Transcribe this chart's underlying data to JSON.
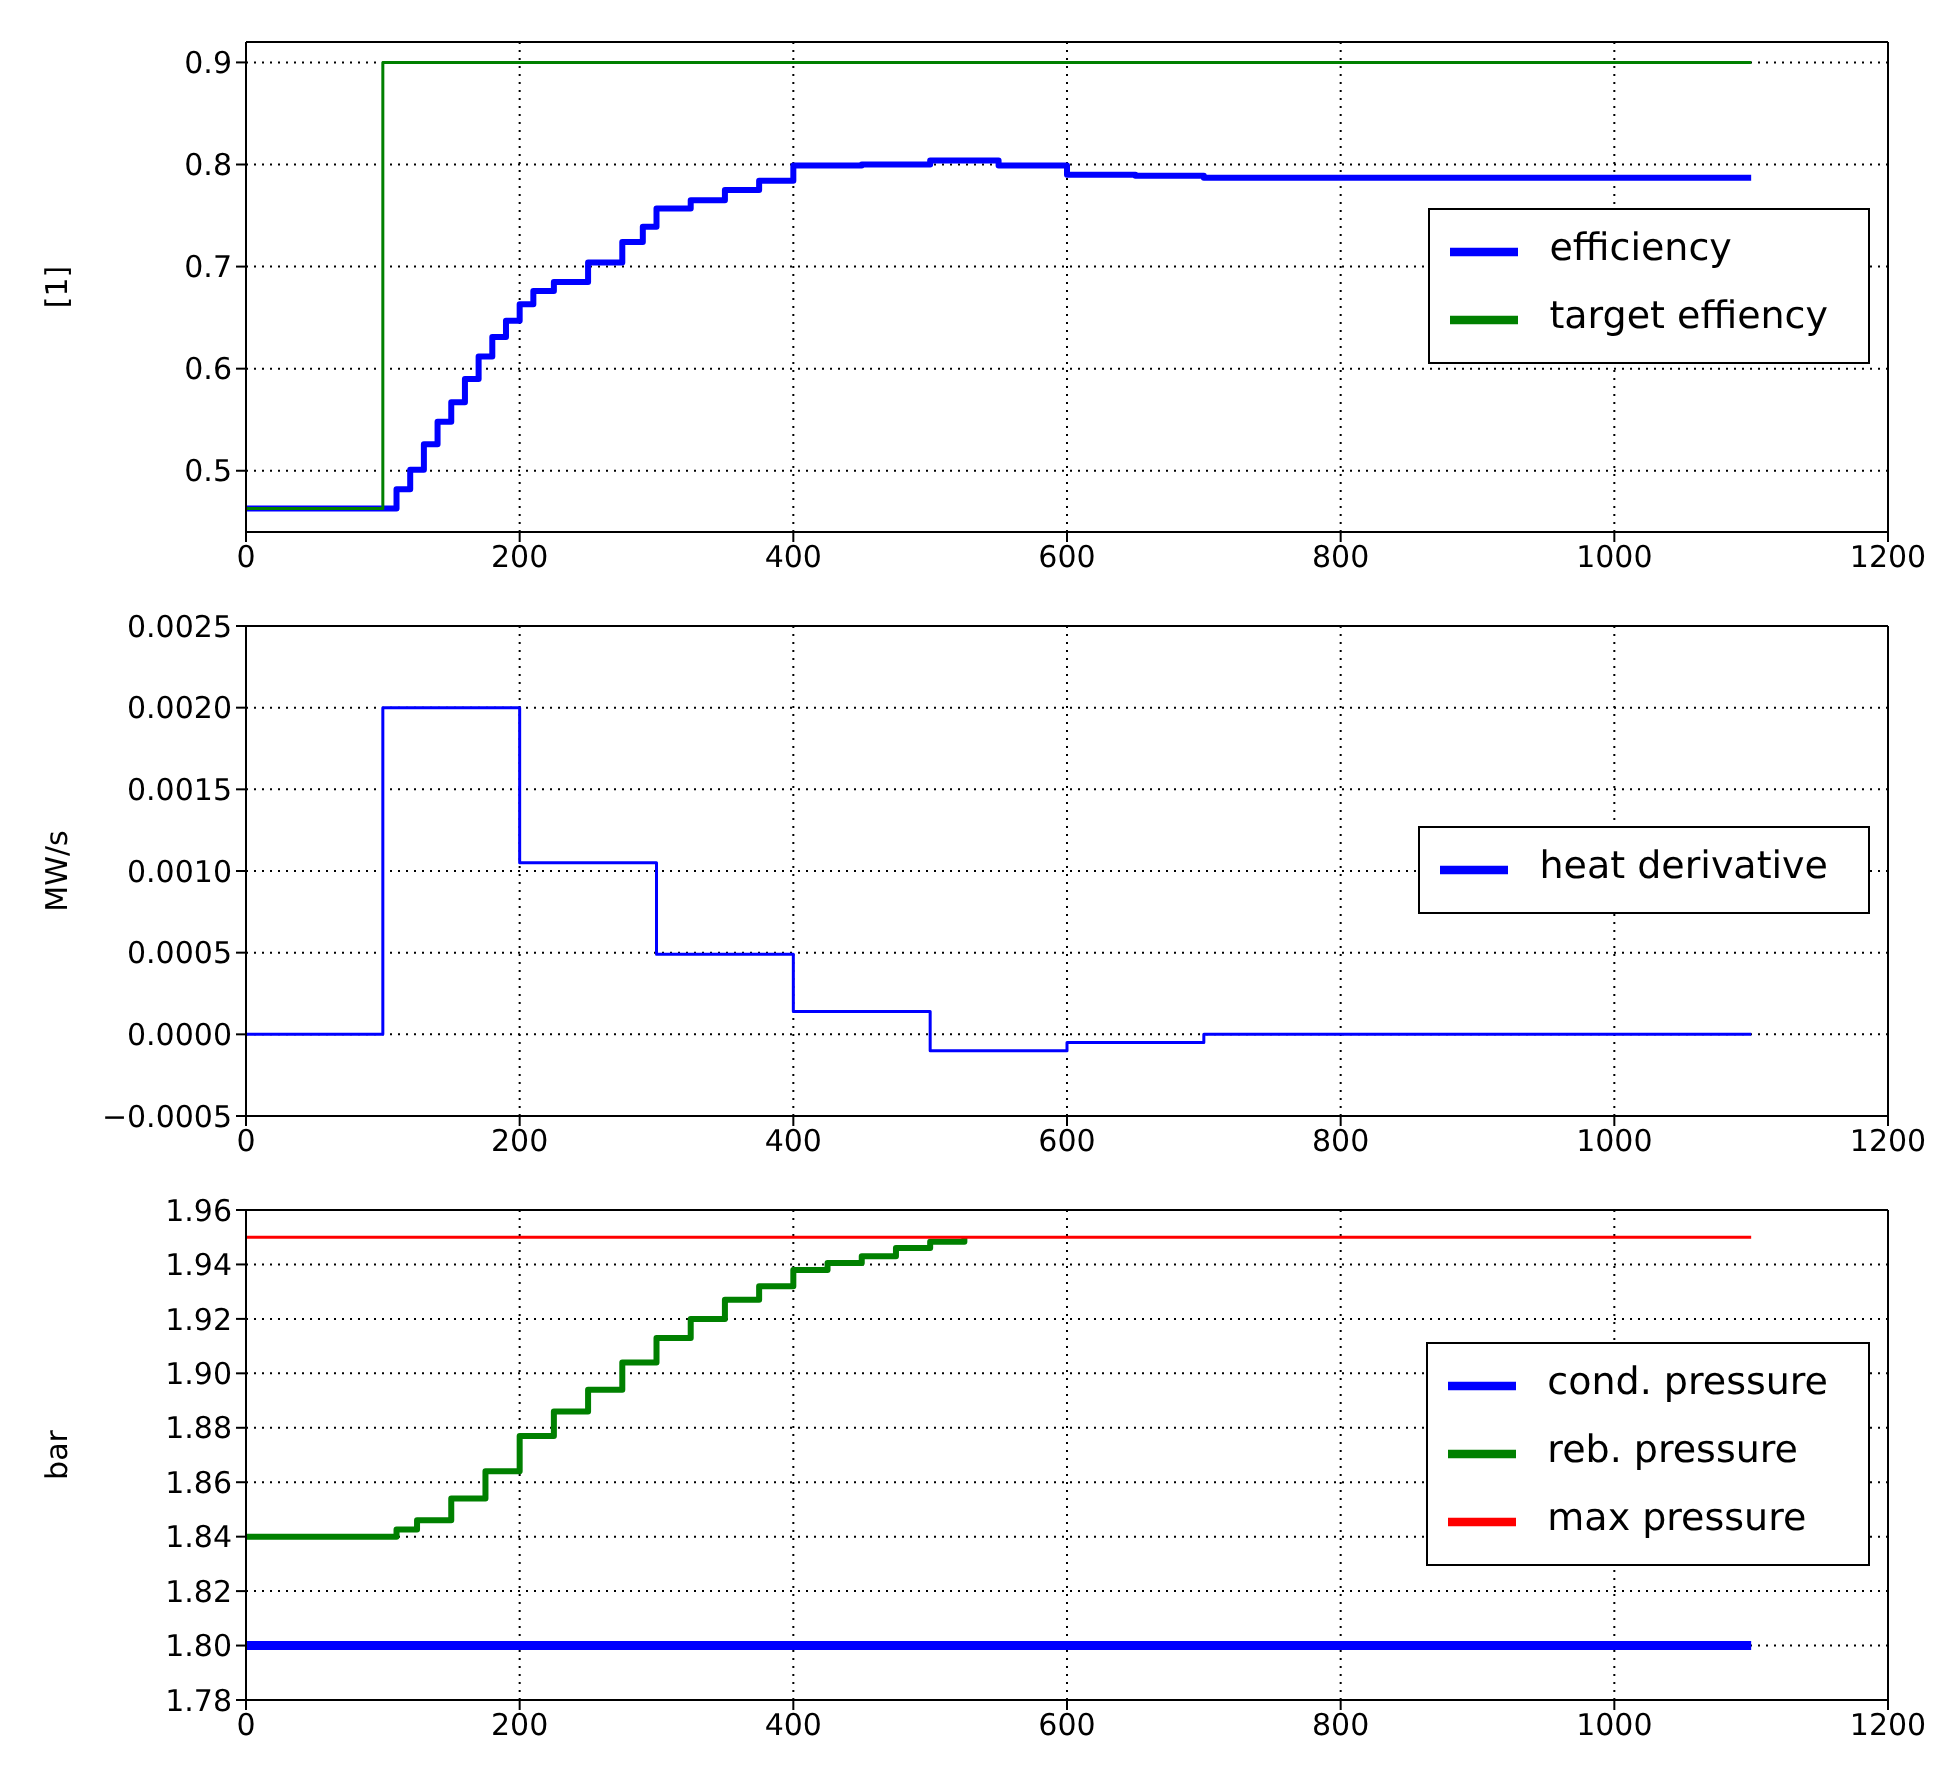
{
  "chart_data": [
    {
      "type": "step",
      "ylabel": "[1]",
      "xlim": [
        0,
        1200
      ],
      "xticks": [
        0,
        200,
        400,
        600,
        800,
        1000,
        1200
      ],
      "ylim": [
        0.44,
        0.92
      ],
      "yticks": [
        0.5,
        0.6,
        0.7,
        0.8,
        0.9
      ],
      "grid": true,
      "legend": "right",
      "series": [
        {
          "name": "efficiency",
          "color": "#0000ff",
          "x": [
            0,
            100,
            110,
            120,
            130,
            140,
            150,
            160,
            170,
            180,
            190,
            200,
            210,
            225,
            250,
            275,
            290,
            300,
            325,
            350,
            375,
            400,
            450,
            500,
            550,
            600,
            650,
            700,
            1100
          ],
          "values": [
            0.463,
            0.463,
            0.482,
            0.501,
            0.526,
            0.548,
            0.567,
            0.59,
            0.612,
            0.631,
            0.647,
            0.663,
            0.676,
            0.685,
            0.704,
            0.724,
            0.739,
            0.757,
            0.765,
            0.775,
            0.784,
            0.799,
            0.8,
            0.804,
            0.799,
            0.79,
            0.789,
            0.787,
            0.787
          ]
        },
        {
          "name": "target effiency",
          "color": "#008000",
          "x": [
            0,
            100,
            1100
          ],
          "values": [
            0.463,
            0.9,
            0.9
          ]
        }
      ]
    },
    {
      "type": "step",
      "ylabel": "MW/s",
      "xlim": [
        0,
        1200
      ],
      "xticks": [
        0,
        200,
        400,
        600,
        800,
        1000,
        1200
      ],
      "ylim": [
        -0.0005,
        0.0025
      ],
      "yticks": [
        {
          "value": -0.0005,
          "label": "−0.0005"
        },
        {
          "value": 0,
          "label": "0.0000"
        },
        {
          "value": 0.0005,
          "label": "0.0005"
        },
        {
          "value": 0.001,
          "label": "0.0010"
        },
        {
          "value": 0.0015,
          "label": "0.0015"
        },
        {
          "value": 0.002,
          "label": "0.0020"
        },
        {
          "value": 0.0025,
          "label": "0.0025"
        }
      ],
      "grid": true,
      "legend": "right",
      "series": [
        {
          "name": "heat derivative",
          "color": "#0000ff",
          "x": [
            0,
            100,
            200,
            300,
            400,
            500,
            600,
            700,
            1100
          ],
          "values": [
            0,
            0.002,
            0.00105,
            0.00049,
            0.00014,
            -0.0001,
            -5e-05,
            0,
            0
          ]
        }
      ]
    },
    {
      "type": "step",
      "ylabel": "bar",
      "xlim": [
        0,
        1200
      ],
      "xticks": [
        0,
        200,
        400,
        600,
        800,
        1000,
        1200
      ],
      "ylim": [
        1.78,
        1.96
      ],
      "yticks": [
        {
          "value": 1.78,
          "label": "1.78"
        },
        {
          "value": 1.8,
          "label": "1.80"
        },
        {
          "value": 1.82,
          "label": "1.82"
        },
        {
          "value": 1.84,
          "label": "1.84"
        },
        {
          "value": 1.86,
          "label": "1.86"
        },
        {
          "value": 1.88,
          "label": "1.88"
        },
        {
          "value": 1.9,
          "label": "1.90"
        },
        {
          "value": 1.92,
          "label": "1.92"
        },
        {
          "value": 1.94,
          "label": "1.94"
        },
        {
          "value": 1.96,
          "label": "1.96"
        }
      ],
      "grid": true,
      "legend": "right",
      "series": [
        {
          "name": "cond. pressure",
          "color": "#0000ff",
          "x": [
            0,
            1100
          ],
          "values": [
            1.8,
            1.8
          ]
        },
        {
          "name": "reb. pressure",
          "color": "#008000",
          "x": [
            0,
            100,
            110,
            125,
            150,
            175,
            200,
            225,
            250,
            275,
            300,
            325,
            350,
            375,
            400,
            425,
            450,
            475,
            500,
            525
          ],
          "values": [
            1.84,
            1.84,
            1.8426,
            1.846,
            1.854,
            1.864,
            1.877,
            1.886,
            1.894,
            1.904,
            1.913,
            1.92,
            1.927,
            1.932,
            1.938,
            1.9405,
            1.943,
            1.946,
            1.9483,
            1.95
          ]
        },
        {
          "name": "max pressure",
          "color": "#ff0000",
          "x": [
            0,
            1100
          ],
          "values": [
            1.95,
            1.95
          ]
        }
      ]
    }
  ]
}
